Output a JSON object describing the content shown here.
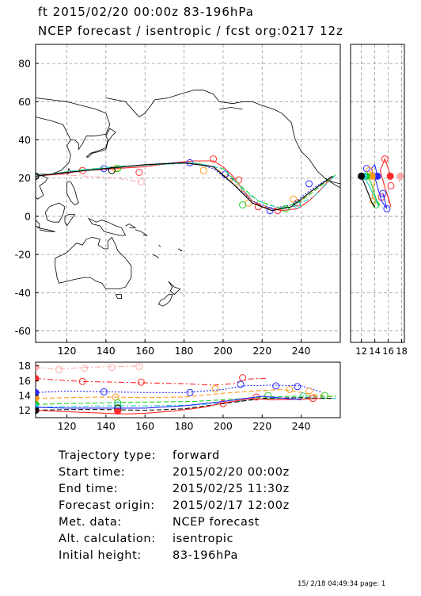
{
  "header": {
    "line1": "ft 2015/02/20 00:00z  83-196hPa",
    "line2": "NCEP forecast / isentropic / fcst org:0217 12z"
  },
  "info": [
    {
      "label": "Trajectory type:",
      "value": "forward"
    },
    {
      "label": "Start time:",
      "value": "2015/02/20 00:00z"
    },
    {
      "label": "End time:",
      "value": "2015/02/25 11:30z"
    },
    {
      "label": "Forecast origin:",
      "value": "2015/02/17 12:00z"
    },
    {
      "label": "Met. data:",
      "value": "NCEP forecast"
    },
    {
      "label": "Alt. calculation:",
      "value": "isentropic"
    },
    {
      "label": "Initial height:",
      "value": " 83-196hPa"
    }
  ],
  "footer": "15/ 2/18 04:49:34 page: 1",
  "colors": {
    "red": "#ff2a2a",
    "blue": "#2a2aff",
    "orange": "#ff9a1a",
    "green": "#22cc22",
    "cyan": "#22cccc",
    "pink": "#ffaaaa"
  },
  "chart_data": [
    {
      "type": "line",
      "panel": "map",
      "xlim": [
        104,
        260
      ],
      "ylim": [
        -66,
        90
      ],
      "xticks": [
        "120",
        "140",
        "160",
        "180",
        "200",
        "220",
        "240"
      ],
      "xtick_values": [
        120,
        140,
        160,
        180,
        200,
        220,
        240
      ],
      "yticks": [
        "-60",
        "-40",
        "-20",
        "0",
        "20",
        "40",
        "60",
        "80"
      ],
      "ytick_values": [
        -60,
        -40,
        -20,
        0,
        20,
        40,
        60,
        80
      ],
      "grid": true,
      "series": [
        {
          "color": "pink",
          "dash": "dashdot",
          "x": [
            104,
            115,
            130,
            145,
            158
          ],
          "y": [
            21,
            22,
            21,
            20,
            18
          ],
          "markers": [
            [
              104,
              21
            ],
            [
              158,
              18
            ]
          ]
        },
        {
          "color": "red",
          "dash": "solid",
          "x": [
            104,
            115,
            130,
            145,
            160,
            175,
            185,
            195,
            200,
            205,
            210,
            215,
            220,
            230,
            238,
            244,
            250,
            256
          ],
          "y": [
            21,
            22,
            24,
            25,
            26,
            28,
            29,
            29,
            26,
            21,
            14,
            8,
            5,
            3,
            4,
            8,
            14,
            21
          ],
          "markers": [
            [
              104,
              21
            ],
            [
              128,
              24
            ],
            [
              157,
              23
            ],
            [
              195,
              30
            ],
            [
              208,
              19
            ],
            [
              218,
              5
            ],
            [
              228,
              3
            ],
            [
              238,
              7
            ]
          ]
        },
        {
          "color": "orange",
          "dash": "dashed",
          "x": [
            104,
            120,
            140,
            160,
            180,
            195,
            205,
            215,
            225,
            235,
            245,
            256
          ],
          "y": [
            21,
            23,
            25,
            27,
            28,
            26,
            18,
            8,
            4,
            5,
            12,
            21
          ],
          "markers": [
            [
              104,
              21
            ],
            [
              145,
              25
            ],
            [
              190,
              24
            ],
            [
              213,
              7
            ],
            [
              236,
              9
            ]
          ]
        },
        {
          "color": "blue",
          "dash": "dotted",
          "x": [
            104,
            120,
            140,
            160,
            175,
            185,
            195,
            205,
            215,
            225,
            235,
            245,
            256
          ],
          "y": [
            21,
            23,
            25,
            27,
            28,
            28,
            25,
            17,
            8,
            4,
            6,
            14,
            21
          ],
          "markers": [
            [
              104,
              21
            ],
            [
              139,
              25
            ],
            [
              183,
              28
            ],
            [
              201,
              22
            ],
            [
              224,
              3
            ],
            [
              244,
              17
            ]
          ]
        },
        {
          "color": "green",
          "dash": "dashed",
          "x": [
            104,
            125,
            145,
            165,
            185,
            200,
            210,
            218,
            230,
            240,
            250,
            258
          ],
          "y": [
            21,
            24,
            26,
            27,
            28,
            25,
            15,
            8,
            4,
            8,
            16,
            22
          ],
          "markers": [
            [
              104,
              21
            ],
            [
              146,
              25
            ],
            [
              210,
              6
            ],
            [
              232,
              4
            ]
          ]
        },
        {
          "color": "cyan",
          "dash": "dashdot",
          "x": [
            104,
            125,
            145,
            165,
            185,
            200,
            212,
            222,
            234,
            246,
            258
          ],
          "y": [
            21,
            24,
            26,
            27,
            28,
            25,
            12,
            6,
            4,
            10,
            22
          ],
          "markers": [
            [
              104,
              21
            ],
            [
              238,
              6
            ]
          ]
        },
        {
          "color": "black",
          "dash": "solid",
          "x": [
            104,
            120,
            140,
            160,
            180,
            195,
            205,
            215,
            225,
            235,
            245,
            256
          ],
          "y": [
            21,
            23,
            25,
            27,
            28,
            26,
            17,
            7,
            3,
            5,
            13,
            21
          ],
          "markers": [
            [
              104,
              21
            ],
            [
              143,
              24
            ]
          ]
        }
      ]
    },
    {
      "type": "line",
      "panel": "side",
      "xlim": [
        10.4,
        18.4
      ],
      "ylim": [
        -66,
        90
      ],
      "xticks": [
        "12",
        "14",
        "16",
        "18"
      ],
      "xtick_values": [
        12,
        14,
        16,
        18
      ],
      "series": [
        {
          "color": "pink",
          "x": [
            17.8,
            17.6,
            18.2
          ],
          "y": [
            21,
            18,
            22
          ],
          "markers": [
            [
              17.8,
              21
            ]
          ]
        },
        {
          "color": "red",
          "x": [
            16.3,
            16.0,
            15.5,
            14.8,
            15.6,
            16.4,
            16.0
          ],
          "y": [
            21,
            25,
            30,
            24,
            14,
            5,
            10
          ],
          "markers": [
            [
              16.3,
              21
            ],
            [
              15.5,
              30
            ],
            [
              16.4,
              16
            ],
            [
              15.0,
              10
            ]
          ]
        },
        {
          "color": "blue",
          "x": [
            14.4,
            14.0,
            13.5,
            14.2,
            15.0,
            15.8,
            15.2
          ],
          "y": [
            21,
            27,
            25,
            18,
            8,
            4,
            12
          ],
          "markers": [
            [
              14.4,
              21
            ],
            [
              12.8,
              25
            ],
            [
              15.8,
              4
            ],
            [
              15.2,
              12
            ]
          ]
        },
        {
          "color": "orange",
          "x": [
            13.6,
            13.2,
            14.0,
            13.6,
            14.8
          ],
          "y": [
            21,
            24,
            20,
            10,
            6
          ],
          "markers": [
            [
              13.6,
              21
            ],
            [
              13.2,
              24
            ],
            [
              13.8,
              8
            ]
          ]
        },
        {
          "color": "green",
          "x": [
            12.8,
            13.4,
            14.2,
            14.6
          ],
          "y": [
            21,
            18,
            9,
            6
          ],
          "markers": [
            [
              12.8,
              21
            ],
            [
              14.2,
              6
            ]
          ]
        },
        {
          "color": "cyan",
          "x": [
            12.4,
            13.0,
            14.0,
            14.6
          ],
          "y": [
            21,
            17,
            10,
            5
          ],
          "markers": [
            [
              12.4,
              21
            ]
          ]
        },
        {
          "color": "black",
          "x": [
            12.0,
            12.8,
            13.6,
            14.0
          ],
          "y": [
            21,
            14,
            7,
            5
          ],
          "markers": [
            [
              12.0,
              21
            ]
          ]
        }
      ]
    },
    {
      "type": "line",
      "panel": "height",
      "xlim": [
        104,
        260
      ],
      "ylim": [
        11,
        18.5
      ],
      "xticks": [
        "120",
        "140",
        "160",
        "180",
        "200",
        "220",
        "240"
      ],
      "xtick_values": [
        120,
        140,
        160,
        180,
        200,
        220,
        240
      ],
      "yticks": [
        "12",
        "14",
        "16",
        "18"
      ],
      "ytick_values": [
        12,
        14,
        16,
        18
      ],
      "series": [
        {
          "color": "pink",
          "dash": "dashdot",
          "x": [
            104,
            115,
            130,
            145,
            158
          ],
          "y": [
            17.8,
            17.6,
            17.8,
            17.9,
            18.0
          ],
          "markers": [
            [
              104,
              17.8
            ],
            [
              116,
              17.5
            ],
            [
              129,
              17.7
            ],
            [
              143,
              17.8
            ],
            [
              157,
              17.9
            ]
          ]
        },
        {
          "color": "red",
          "dash": "dashdot",
          "x": [
            104,
            115,
            128,
            145,
            160,
            180,
            195,
            205,
            212,
            218,
            223
          ],
          "y": [
            16.3,
            16.1,
            15.9,
            15.8,
            15.7,
            15.6,
            15.4,
            15.6,
            16.2,
            16.3,
            16.3
          ],
          "markers": [
            [
              104,
              16.3
            ],
            [
              128,
              15.9
            ],
            [
              158,
              15.8
            ],
            [
              210,
              16.4
            ]
          ]
        },
        {
          "color": "blue",
          "dash": "dotted",
          "x": [
            104,
            120,
            140,
            160,
            180,
            200,
            210,
            225,
            240,
            250
          ],
          "y": [
            14.4,
            14.6,
            14.5,
            14.4,
            14.4,
            14.8,
            15.3,
            15.4,
            15.3,
            14.5
          ],
          "markers": [
            [
              104,
              14.4
            ],
            [
              139,
              14.5
            ],
            [
              183,
              14.4
            ],
            [
              209,
              15.5
            ],
            [
              227,
              15.3
            ],
            [
              238,
              15.2
            ]
          ]
        },
        {
          "color": "orange",
          "dash": "dashed",
          "x": [
            104,
            120,
            140,
            160,
            180,
            200,
            215,
            230,
            245,
            256
          ],
          "y": [
            13.6,
            13.7,
            13.8,
            13.7,
            13.8,
            14.3,
            14.6,
            14.8,
            14.2,
            13.8
          ],
          "markers": [
            [
              104,
              13.6
            ],
            [
              145,
              13.8
            ],
            [
              196,
              14.9
            ],
            [
              234,
              14.8
            ],
            [
              244,
              14.6
            ]
          ]
        },
        {
          "color": "green",
          "dash": "dashed",
          "x": [
            104,
            120,
            140,
            160,
            185,
            205,
            222,
            240,
            258
          ],
          "y": [
            12.8,
            12.9,
            13.0,
            13.1,
            13.2,
            13.5,
            13.8,
            13.9,
            13.9
          ],
          "markers": [
            [
              104,
              12.8
            ],
            [
              146,
              13.0
            ],
            [
              223,
              14.0
            ],
            [
              252,
              14.0
            ]
          ]
        },
        {
          "color": "cyan",
          "dash": "dashdot",
          "x": [
            104,
            120,
            140,
            160,
            185,
            205,
            222,
            240,
            258
          ],
          "y": [
            12.4,
            12.5,
            12.6,
            12.6,
            12.7,
            13.1,
            13.6,
            13.7,
            13.6
          ],
          "markers": [
            [
              104,
              12.4
            ],
            [
              146,
              12.7
            ],
            [
              241,
              13.9
            ]
          ]
        },
        {
          "color": "black",
          "dash": "dashed",
          "x": [
            104,
            120,
            140,
            160,
            180,
            200,
            220,
            240,
            256
          ],
          "y": [
            12.0,
            12.1,
            12.1,
            12.0,
            12.2,
            12.9,
            13.6,
            13.7,
            13.6
          ],
          "markers": [
            [
              104,
              12.0
            ],
            [
              146,
              12.3
            ]
          ]
        },
        {
          "color": "red",
          "dash": "solid",
          "x": [
            104,
            120,
            140,
            150,
            160,
            175,
            190,
            200,
            215,
            225,
            240,
            250
          ],
          "y": [
            12.0,
            11.8,
            11.6,
            11.5,
            11.6,
            11.9,
            12.4,
            13.0,
            13.6,
            13.4,
            13.5,
            13.6
          ],
          "markers": [
            [
              146,
              11.9
            ],
            [
              200,
              12.9
            ],
            [
              217,
              13.8
            ],
            [
              246,
              13.6
            ]
          ]
        },
        {
          "color": "blue",
          "dash": "solid",
          "x": [
            104,
            120,
            140,
            160,
            180,
            200,
            220,
            240
          ],
          "y": [
            12.4,
            12.3,
            12.3,
            12.3,
            12.6,
            13.2,
            13.9,
            13.4
          ],
          "markers": []
        }
      ]
    }
  ]
}
